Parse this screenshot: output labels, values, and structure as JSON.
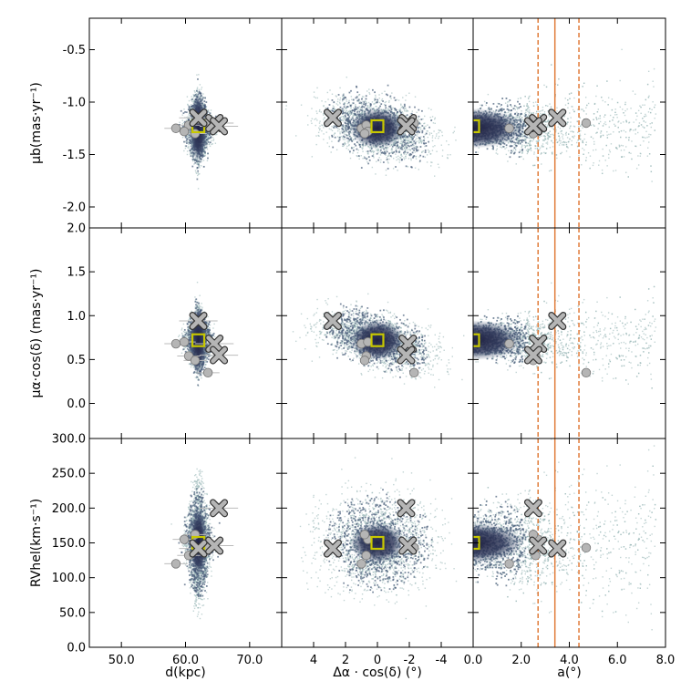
{
  "chart_data": {
    "type": "scatter",
    "description_free": true,
    "panels": [
      {
        "row": 0,
        "col": 0,
        "xkey": "d",
        "ykey": "mub",
        "title": ""
      },
      {
        "row": 0,
        "col": 1,
        "xkey": "dra",
        "ykey": "mub",
        "title": ""
      },
      {
        "row": 0,
        "col": 2,
        "xkey": "a",
        "ykey": "mub",
        "title": ""
      },
      {
        "row": 1,
        "col": 0,
        "xkey": "d",
        "ykey": "mua",
        "title": ""
      },
      {
        "row": 1,
        "col": 1,
        "xkey": "dra",
        "ykey": "mua",
        "title": ""
      },
      {
        "row": 1,
        "col": 2,
        "xkey": "a",
        "ykey": "mua",
        "title": ""
      },
      {
        "row": 2,
        "col": 0,
        "xkey": "d",
        "ykey": "rv",
        "title": ""
      },
      {
        "row": 2,
        "col": 1,
        "xkey": "dra",
        "ykey": "rv",
        "title": ""
      },
      {
        "row": 2,
        "col": 2,
        "xkey": "a",
        "ykey": "rv",
        "title": ""
      }
    ],
    "x_axes": {
      "d": {
        "label": "d(kpc)",
        "range": [
          45,
          75
        ],
        "ticks": [
          50,
          60,
          70
        ],
        "tick_labels": [
          "50.0",
          "60.0",
          "70.0"
        ]
      },
      "dra": {
        "label": "Δα · cos(δ) (°)",
        "range": [
          6,
          -6
        ],
        "ticks": [
          4,
          2,
          0,
          -2,
          -4
        ],
        "tick_labels": [
          "4",
          "2",
          "0",
          "-2",
          "-4"
        ]
      },
      "a": {
        "label": "a(°)",
        "range": [
          0,
          8
        ],
        "ticks": [
          0,
          2,
          4,
          6,
          8
        ],
        "tick_labels": [
          "0.0",
          "2.0",
          "4.0",
          "6.0",
          "8.0"
        ]
      }
    },
    "y_axes": {
      "mub": {
        "label": "μb(mas·yr⁻¹)",
        "range": [
          -2.2,
          -0.2
        ],
        "ticks": [
          -0.5,
          -1.0,
          -1.5,
          -2.0
        ],
        "tick_labels": [
          "-0.5",
          "-1.0",
          "-1.5",
          "-2.0"
        ]
      },
      "mua": {
        "label": "μα·cos(δ) (mas·yr⁻¹)",
        "range": [
          -0.4,
          2.0
        ],
        "ticks": [
          0.0,
          0.5,
          1.0,
          1.5,
          2.0
        ],
        "tick_labels": [
          "0.0",
          "0.5",
          "1.0",
          "1.5",
          "2.0"
        ]
      },
      "rv": {
        "label": "RVhel(km·s⁻¹)",
        "range": [
          0,
          300
        ],
        "ticks": [
          0,
          50,
          100,
          150,
          200,
          250,
          300
        ],
        "tick_labels": [
          "0.0",
          "50.0",
          "100.0",
          "150.0",
          "200.0",
          "250.0",
          "300.0"
        ]
      }
    },
    "cloud_center": {
      "d": 62,
      "dra": 0,
      "a": 0,
      "mub": -1.25,
      "mua": 0.72,
      "rv": 150
    },
    "square_marker": {
      "d": 62,
      "dra": 0,
      "a": 0,
      "mub": -1.23,
      "mua": 0.72,
      "rv": 150,
      "color": "#c8c800"
    },
    "x_markers": [
      {
        "d": 62.0,
        "dra": 2.8,
        "a": 3.5,
        "mub": -1.15,
        "mua": 0.94,
        "rv": 142
      },
      {
        "d": 64.5,
        "dra": -1.9,
        "a": 2.7,
        "mub": -1.2,
        "mua": 0.68,
        "rv": 146
      },
      {
        "d": 65.2,
        "dra": -1.8,
        "a": 2.5,
        "mub": -1.23,
        "mua": 0.55,
        "rv": 200
      }
    ],
    "circle_markers": [
      {
        "d": 58.5,
        "dra": 1.0,
        "a": 1.5,
        "mub": -1.25,
        "mua": 0.68,
        "rv": 120
      },
      {
        "d": 60.5,
        "dra": 0.7,
        "a": 2.6,
        "mub": -1.22,
        "mua": 0.54,
        "rv": 132
      },
      {
        "d": 59.8,
        "dra": 0.6,
        "a": 2.7,
        "mub": -1.28,
        "mua": 0.7,
        "rv": 155
      },
      {
        "d": 61.5,
        "dra": 0.8,
        "a": 2.5,
        "mub": -1.3,
        "mua": 0.49,
        "rv": 162
      },
      {
        "d": 63.5,
        "dra": -2.3,
        "a": 4.7,
        "mub": -1.2,
        "mua": 0.35,
        "rv": 143
      }
    ],
    "vlines_a": [
      {
        "a": 2.7,
        "style": "dashed",
        "color": "#e07b39"
      },
      {
        "a": 3.4,
        "style": "solid",
        "color": "#e07b39"
      },
      {
        "a": 4.4,
        "style": "dashed",
        "color": "#e07b39"
      }
    ],
    "colors": {
      "cloud_dark": "#1e1f3f",
      "cloud_mid": "#4a5a7a",
      "cloud_light": "#8fb0b0",
      "marker_gray": "#b5b5b5"
    }
  }
}
